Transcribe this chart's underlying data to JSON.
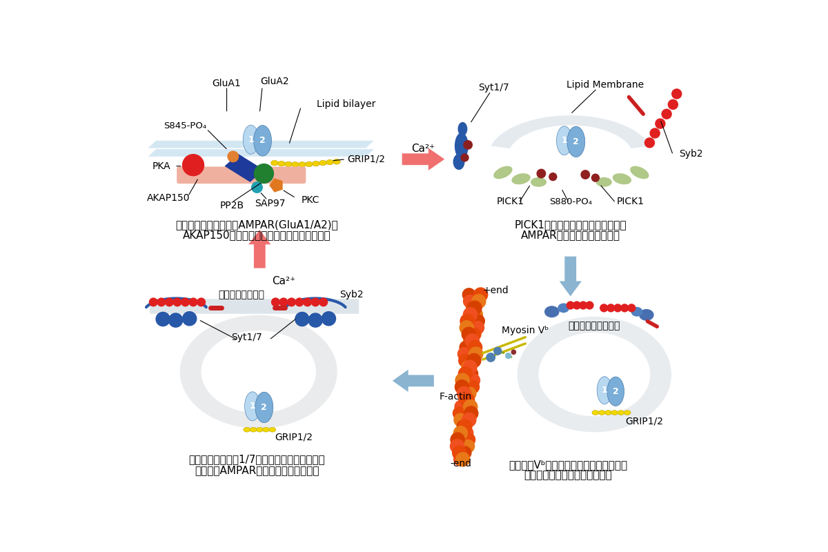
{
  "bg_color": "#ffffff",
  "panel_labels": {
    "tl_caption_line1": "シナプス後膜におけるAMPAR(GluA1/A2)の",
    "tl_caption_line2": "AKAP150複合体によるリン酸化・脱リン酸化",
    "tr_caption_line1": "PICK1によるシナプス後膜における",
    "tr_caption_line2": "AMPARのエンドサイトーシス",
    "bl_caption_line1": "シナプトタグミン1/7によるシナプス後膜周辺",
    "bl_caption_line2": "におけるAMPARのエキソサイトーシス",
    "br_caption_line1": "ミオシンVᵇによる再循環エンドソームの",
    "br_caption_line2": "シナプス後膜周辺への能動輸送"
  },
  "arrows": {
    "right_color": "#f07070",
    "down_color": "#8ab4d0",
    "left_color": "#8ab4d0",
    "up_color": "#f07070",
    "ca2plus": "Ca²⁺"
  }
}
